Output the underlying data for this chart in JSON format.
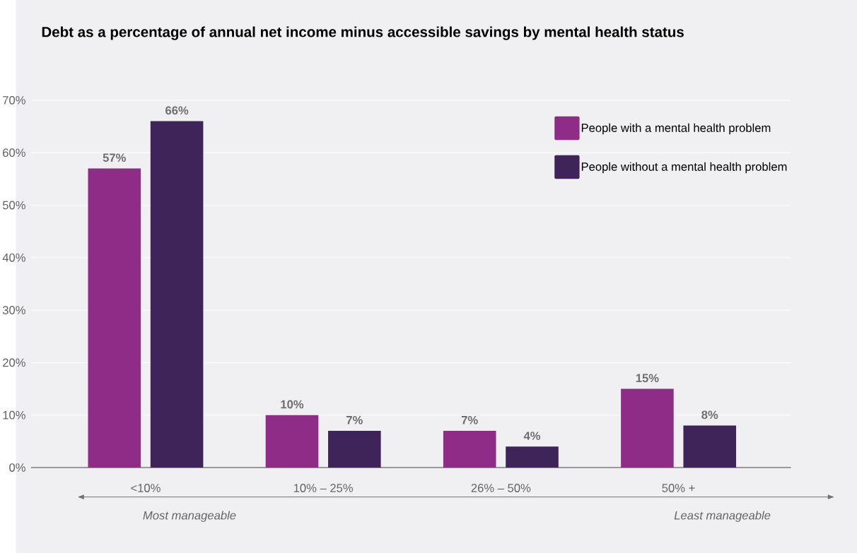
{
  "chart_data": {
    "type": "bar",
    "title": "Debt as a percentage of annual net income minus accessible savings by mental health status",
    "categories": [
      "<10%",
      "10% – 25%",
      "26% – 50%",
      "50% +"
    ],
    "series": [
      {
        "name": "People with a mental health problem",
        "color": "#8e2c88",
        "values": [
          57,
          10,
          7,
          15
        ],
        "value_labels": [
          "57%",
          "10%",
          "7%",
          "15%"
        ]
      },
      {
        "name": "People without a mental health problem",
        "color": "#3f2459",
        "values": [
          66,
          7,
          4,
          8
        ],
        "value_labels": [
          "66%",
          "7%",
          "4%",
          "8%"
        ]
      }
    ],
    "ylim": [
      0,
      70
    ],
    "yticks": [
      {
        "value": 0,
        "label": "0%"
      },
      {
        "value": 10,
        "label": "10%"
      },
      {
        "value": 20,
        "label": "20%"
      },
      {
        "value": 30,
        "label": "30%"
      },
      {
        "value": 40,
        "label": "40%"
      },
      {
        "value": 50,
        "label": "50%"
      },
      {
        "value": 60,
        "label": "60%"
      },
      {
        "value": 70,
        "label": "70%"
      }
    ],
    "grid": "y",
    "legend": "top right",
    "annotations": [
      "Most manageable",
      "Least manageable"
    ]
  }
}
